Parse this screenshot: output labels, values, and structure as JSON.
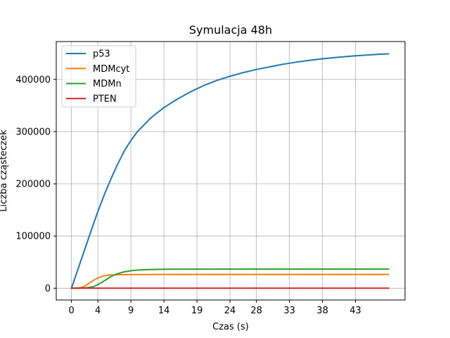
{
  "chart_data": {
    "type": "line",
    "title": "Symulacja 48h",
    "xlabel": "Czas (s)",
    "ylabel": "Liczba cząsteczek",
    "xlim": [
      -2.3,
      50.5
    ],
    "ylim": [
      -22500,
      472500
    ],
    "xticks": [
      0,
      4,
      9,
      14,
      19,
      24,
      28,
      33,
      38,
      43
    ],
    "xtick_labels": [
      "0",
      "4",
      "9",
      "14",
      "19",
      "24",
      "28",
      "33",
      "38",
      "43"
    ],
    "yticks": [
      0,
      100000,
      200000,
      300000,
      400000
    ],
    "ytick_labels": [
      "0",
      "100000",
      "200000",
      "300000",
      "400000"
    ],
    "grid": true,
    "legend": "top-left",
    "series": [
      {
        "name": "p53",
        "color": "#1f77b4",
        "x": [
          0,
          1,
          2,
          3,
          4,
          5,
          6,
          7,
          8,
          9,
          10,
          12,
          14,
          16,
          18,
          20,
          22,
          24,
          26,
          28,
          30,
          32,
          34,
          36,
          38,
          40,
          42,
          44,
          46,
          48
        ],
        "y": [
          0,
          37000,
          74000,
          111000,
          147000,
          180000,
          210000,
          238000,
          263000,
          283000,
          300000,
          326000,
          346000,
          362000,
          376000,
          388000,
          398000,
          406000,
          413000,
          419000,
          424000,
          429000,
          433000,
          436500,
          439500,
          442000,
          444200,
          446000,
          447700,
          449000
        ]
      },
      {
        "name": "MDMcyt",
        "color": "#ff7f0e",
        "x": [
          0,
          1,
          1.5,
          2,
          2.5,
          3,
          3.5,
          4,
          4.5,
          5,
          5.5,
          6,
          7,
          8,
          10,
          14,
          20,
          30,
          40,
          48
        ],
        "y": [
          0,
          400,
          1500,
          4000,
          8000,
          12500,
          16500,
          19500,
          22000,
          23800,
          24800,
          25400,
          25900,
          26100,
          26200,
          26300,
          26300,
          26300,
          26300,
          26300
        ]
      },
      {
        "name": "MDMn",
        "color": "#2ca02c",
        "x": [
          0,
          1,
          2,
          3,
          3.5,
          4,
          4.5,
          5,
          5.5,
          6,
          6.5,
          7,
          8,
          9,
          10,
          11,
          12,
          14,
          18,
          24,
          30,
          40,
          48
        ],
        "y": [
          0,
          100,
          500,
          2000,
          4000,
          7000,
          10500,
          14500,
          18500,
          22500,
          25500,
          28000,
          31500,
          33500,
          34800,
          35500,
          35900,
          36300,
          36600,
          36700,
          36700,
          36700,
          36700
        ]
      },
      {
        "name": "PTEN",
        "color": "#d62728",
        "x": [
          0,
          48
        ],
        "y": [
          0,
          0
        ]
      }
    ]
  }
}
